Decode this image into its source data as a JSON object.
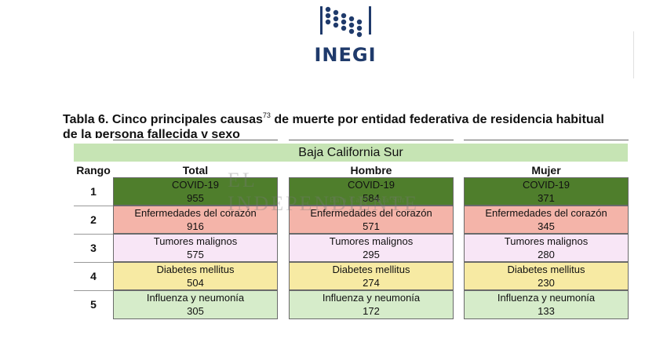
{
  "logo": {
    "text": "INEGI"
  },
  "title": {
    "line1_main": "Tabla 6. Cinco principales causas",
    "footnote": "73",
    "line1_rest": " de muerte por entidad federativa de residencia habitual",
    "line2": "de la persona fallecida y sexo"
  },
  "region": "Baja California Sur",
  "headers": {
    "rank": "Rango",
    "total": "Total",
    "male": "Hombre",
    "female": "Mujer"
  },
  "rows": [
    {
      "rank": "1",
      "cause": "COVID-19",
      "total": "955",
      "male": "584",
      "female": "371"
    },
    {
      "rank": "2",
      "cause": "Enfermedades del corazón",
      "total": "916",
      "male": "571",
      "female": "345"
    },
    {
      "rank": "3",
      "cause": "Tumores malignos",
      "total": "575",
      "male": "295",
      "female": "280"
    },
    {
      "rank": "4",
      "cause": "Diabetes mellitus",
      "total": "504",
      "male": "274",
      "female": "230"
    },
    {
      "rank": "5",
      "cause": "Influenza y neumonía",
      "total": "305",
      "male": "172",
      "female": "133"
    }
  ],
  "watermark": {
    "text": "EL INDEPENDIENTE",
    "sub": "Baja California Sur"
  },
  "colors": {
    "covid": "#4f7e2c",
    "heart": "#f4b4a9",
    "tumor": "#f8e6f6",
    "diabetes": "#f7eaa3",
    "flu": "#d6ecca",
    "region_bar": "#c6e4b4",
    "logo": "#1f3a6b"
  }
}
